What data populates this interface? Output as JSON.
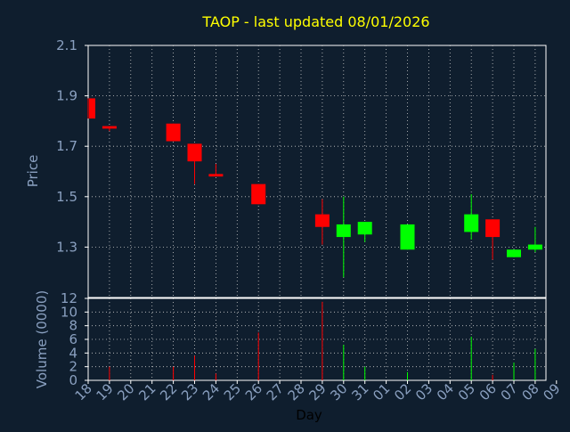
{
  "chart_data": {
    "type": "candlestick",
    "title": "TAOP - last updated 08/01/2026",
    "xlabel": "Day",
    "price_panel": {
      "ylabel": "Price",
      "ylim": [
        1.1,
        2.1
      ],
      "yticks": [
        "2.1",
        "1.9",
        "1.7",
        "1.5",
        "1.3"
      ],
      "ytick_values": [
        2.1,
        1.9,
        1.7,
        1.5,
        1.3
      ]
    },
    "volume_panel": {
      "ylabel": "Volume (0000)",
      "ylim": [
        0,
        12
      ],
      "yticks": [
        "12",
        "10",
        "8",
        "6",
        "4",
        "2",
        "0"
      ],
      "ytick_values": [
        12,
        10,
        8,
        6,
        4,
        2,
        0
      ]
    },
    "x_ticks": [
      "18",
      "19",
      "20",
      "21",
      "22",
      "23",
      "24",
      "25",
      "26",
      "27",
      "28",
      "29",
      "30",
      "31",
      "01",
      "02",
      "03",
      "04",
      "05",
      "06",
      "07",
      "08",
      "09"
    ],
    "grid": true,
    "colors": {
      "background": "#0f1e2e",
      "axis_text": "#8aa0c0",
      "title": "#ffff00",
      "up": "#00ff00",
      "down": "#ff0000",
      "grid": "#c8c8c8"
    },
    "candles": [
      {
        "date": "18",
        "open": 1.89,
        "close": 1.81,
        "high": 1.89,
        "low": 1.81,
        "volume": 0
      },
      {
        "date": "19",
        "open": 1.78,
        "close": 1.77,
        "high": 1.78,
        "low": 1.76,
        "volume": 2
      },
      {
        "date": "22",
        "open": 1.79,
        "close": 1.72,
        "high": 1.79,
        "low": 1.72,
        "volume": 2
      },
      {
        "date": "23",
        "open": 1.71,
        "close": 1.64,
        "high": 1.71,
        "low": 1.55,
        "volume": 3.6
      },
      {
        "date": "24",
        "open": 1.59,
        "close": 1.58,
        "high": 1.63,
        "low": 1.58,
        "volume": 1
      },
      {
        "date": "26",
        "open": 1.55,
        "close": 1.47,
        "high": 1.55,
        "low": 1.47,
        "volume": 7
      },
      {
        "date": "29",
        "open": 1.43,
        "close": 1.38,
        "high": 1.49,
        "low": 1.31,
        "volume": 11.5
      },
      {
        "date": "30",
        "open": 1.34,
        "close": 1.39,
        "high": 1.5,
        "low": 1.18,
        "volume": 5.2
      },
      {
        "date": "31",
        "open": 1.35,
        "close": 1.4,
        "high": 1.4,
        "low": 1.32,
        "volume": 2
      },
      {
        "date": "02",
        "open": 1.29,
        "close": 1.39,
        "high": 1.39,
        "low": 1.29,
        "volume": 1.2
      },
      {
        "date": "05",
        "open": 1.36,
        "close": 1.43,
        "high": 1.51,
        "low": 1.33,
        "volume": 6.4
      },
      {
        "date": "06",
        "open": 1.41,
        "close": 1.34,
        "high": 1.41,
        "low": 1.25,
        "volume": 0.8
      },
      {
        "date": "07",
        "open": 1.26,
        "close": 1.29,
        "high": 1.29,
        "low": 1.26,
        "volume": 2.6
      },
      {
        "date": "08",
        "open": 1.29,
        "close": 1.31,
        "high": 1.38,
        "low": 1.28,
        "volume": 4.6
      }
    ]
  }
}
